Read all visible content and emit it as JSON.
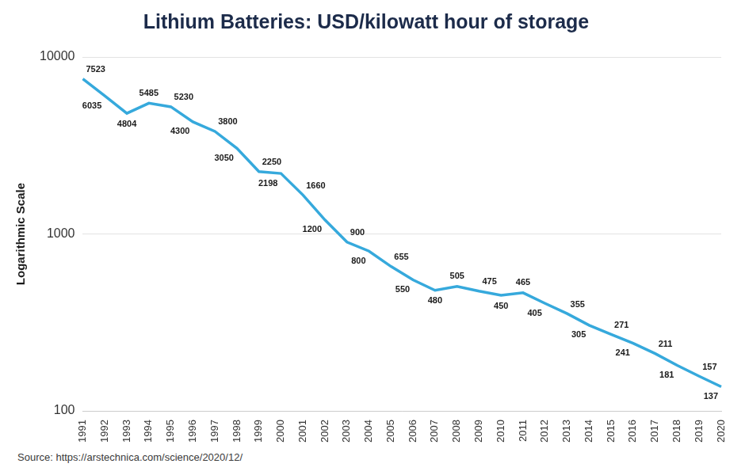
{
  "chart_data": {
    "type": "line",
    "title": "Lithium Batteries: USD/kilowatt hour of storage",
    "y_label": "Logarithmic Scale",
    "source": "Source: https://arstechnica.com/science/2020/12/",
    "categories": [
      "1991",
      "1992",
      "1993",
      "1994",
      "1995",
      "1996",
      "1997",
      "1998",
      "1999",
      "2000",
      "2001",
      "2002",
      "2003",
      "2004",
      "2005",
      "2006",
      "2007",
      "2008",
      "2009",
      "2010",
      "2011",
      "2012",
      "2013",
      "2014",
      "2015",
      "2016",
      "2017",
      "2018",
      "2019",
      "2020"
    ],
    "values": [
      7523,
      6035,
      4804,
      5485,
      5230,
      4300,
      3800,
      3050,
      2250,
      2198,
      1660,
      1200,
      900,
      800,
      655,
      550,
      480,
      505,
      475,
      450,
      465,
      405,
      355,
      305,
      271,
      241,
      211,
      181,
      157,
      137
    ],
    "color": "#36a9dc",
    "log": "y",
    "ylim": [
      100,
      10000
    ],
    "yticks": [
      100,
      1000,
      10000
    ],
    "grid": true,
    "data_labels": true
  }
}
